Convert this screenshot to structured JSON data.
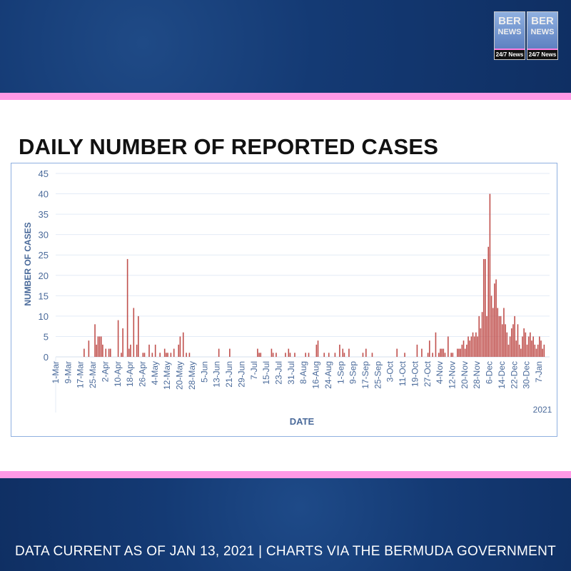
{
  "header": {
    "logo_text": [
      "BER",
      "NEWS",
      "24/7 News"
    ]
  },
  "footer": {
    "text": "DATA CURRENT AS OF JAN 13, 2021 | CHARTS VIA THE BERMUDA GOVERNMENT"
  },
  "colors": {
    "bar": "#c0504d",
    "axis_text": "#4a6a9a",
    "banner": "#143a74",
    "accent": "#ff99e6"
  },
  "chart_data": {
    "type": "bar",
    "title": "DAILY NUMBER OF REPORTED CASES",
    "xlabel": "DATE",
    "ylabel": "NUMBER OF CASES",
    "year_label": "2021",
    "ylim": [
      0,
      45
    ],
    "yticks": [
      0,
      5,
      10,
      15,
      20,
      25,
      30,
      35,
      40,
      45
    ],
    "start_date": "1-Mar-2020",
    "xtick_labels": [
      "1-Mar",
      "9-Mar",
      "17-Mar",
      "25-Mar",
      "2-Apr",
      "10-Apr",
      "18-Apr",
      "26-Apr",
      "4-May",
      "12-May",
      "20-May",
      "28-May",
      "5-Jun",
      "13-Jun",
      "21-Jun",
      "29-Jun",
      "7-Jul",
      "15-Jul",
      "23-Jul",
      "31-Jul",
      "8-Aug",
      "16-Aug",
      "24-Aug",
      "1-Sep",
      "9-Sep",
      "17-Sep",
      "25-Sep",
      "3-Oct",
      "11-Oct",
      "19-Oct",
      "27-Oct",
      "4-Nov",
      "12-Nov",
      "20-Nov",
      "28-Nov",
      "6-Dec",
      "14-Dec",
      "22-Dec",
      "30-Dec",
      "7-Jan"
    ],
    "grid": true,
    "daily_cases_by_day_offset": [
      [
        18,
        2
      ],
      [
        21,
        4
      ],
      [
        25,
        8
      ],
      [
        26,
        3
      ],
      [
        27,
        5
      ],
      [
        28,
        5
      ],
      [
        29,
        5
      ],
      [
        30,
        3
      ],
      [
        32,
        2
      ],
      [
        34,
        2
      ],
      [
        35,
        2
      ],
      [
        40,
        9
      ],
      [
        42,
        1
      ],
      [
        43,
        7
      ],
      [
        46,
        24
      ],
      [
        47,
        2
      ],
      [
        48,
        3
      ],
      [
        50,
        12
      ],
      [
        52,
        3
      ],
      [
        53,
        10
      ],
      [
        56,
        1
      ],
      [
        57,
        1
      ],
      [
        60,
        3
      ],
      [
        62,
        1
      ],
      [
        64,
        3
      ],
      [
        67,
        1
      ],
      [
        70,
        2
      ],
      [
        71,
        1
      ],
      [
        72,
        1
      ],
      [
        74,
        1
      ],
      [
        76,
        2
      ],
      [
        79,
        3
      ],
      [
        80,
        5
      ],
      [
        82,
        6
      ],
      [
        84,
        1
      ],
      [
        86,
        1
      ],
      [
        105,
        2
      ],
      [
        112,
        2
      ],
      [
        130,
        2
      ],
      [
        131,
        1
      ],
      [
        132,
        1
      ],
      [
        139,
        2
      ],
      [
        140,
        1
      ],
      [
        142,
        1
      ],
      [
        148,
        1
      ],
      [
        150,
        2
      ],
      [
        151,
        1
      ],
      [
        154,
        1
      ],
      [
        161,
        1
      ],
      [
        163,
        1
      ],
      [
        168,
        3
      ],
      [
        169,
        4
      ],
      [
        173,
        1
      ],
      [
        176,
        1
      ],
      [
        180,
        1
      ],
      [
        183,
        3
      ],
      [
        185,
        2
      ],
      [
        186,
        1
      ],
      [
        189,
        2
      ],
      [
        198,
        1
      ],
      [
        200,
        2
      ],
      [
        204,
        1
      ],
      [
        220,
        2
      ],
      [
        225,
        1
      ],
      [
        233,
        3
      ],
      [
        236,
        2
      ],
      [
        240,
        1
      ],
      [
        241,
        4
      ],
      [
        243,
        1
      ],
      [
        245,
        6
      ],
      [
        247,
        1
      ],
      [
        248,
        2
      ],
      [
        249,
        2
      ],
      [
        250,
        2
      ],
      [
        251,
        1
      ],
      [
        253,
        5
      ],
      [
        255,
        1
      ],
      [
        256,
        1
      ],
      [
        259,
        2
      ],
      [
        260,
        2
      ],
      [
        261,
        2
      ],
      [
        262,
        3
      ],
      [
        263,
        4
      ],
      [
        264,
        2
      ],
      [
        265,
        3
      ],
      [
        266,
        5
      ],
      [
        267,
        4
      ],
      [
        268,
        5
      ],
      [
        269,
        6
      ],
      [
        270,
        5
      ],
      [
        271,
        6
      ],
      [
        272,
        5
      ],
      [
        273,
        10
      ],
      [
        274,
        7
      ],
      [
        275,
        11
      ],
      [
        276,
        24
      ],
      [
        277,
        24
      ],
      [
        278,
        10
      ],
      [
        279,
        27
      ],
      [
        280,
        40
      ],
      [
        281,
        15
      ],
      [
        282,
        12
      ],
      [
        283,
        18
      ],
      [
        284,
        19
      ],
      [
        285,
        12
      ],
      [
        286,
        10
      ],
      [
        287,
        10
      ],
      [
        288,
        8
      ],
      [
        289,
        12
      ],
      [
        290,
        8
      ],
      [
        291,
        6
      ],
      [
        292,
        3
      ],
      [
        293,
        5
      ],
      [
        294,
        7
      ],
      [
        295,
        8
      ],
      [
        296,
        10
      ],
      [
        297,
        4
      ],
      [
        298,
        8
      ],
      [
        299,
        3
      ],
      [
        300,
        2
      ],
      [
        301,
        5
      ],
      [
        302,
        7
      ],
      [
        303,
        6
      ],
      [
        304,
        3
      ],
      [
        305,
        5
      ],
      [
        306,
        6
      ],
      [
        307,
        4
      ],
      [
        308,
        5
      ],
      [
        309,
        3
      ],
      [
        310,
        2
      ],
      [
        311,
        3
      ],
      [
        312,
        5
      ],
      [
        313,
        4
      ],
      [
        314,
        2
      ],
      [
        315,
        3
      ]
    ]
  }
}
